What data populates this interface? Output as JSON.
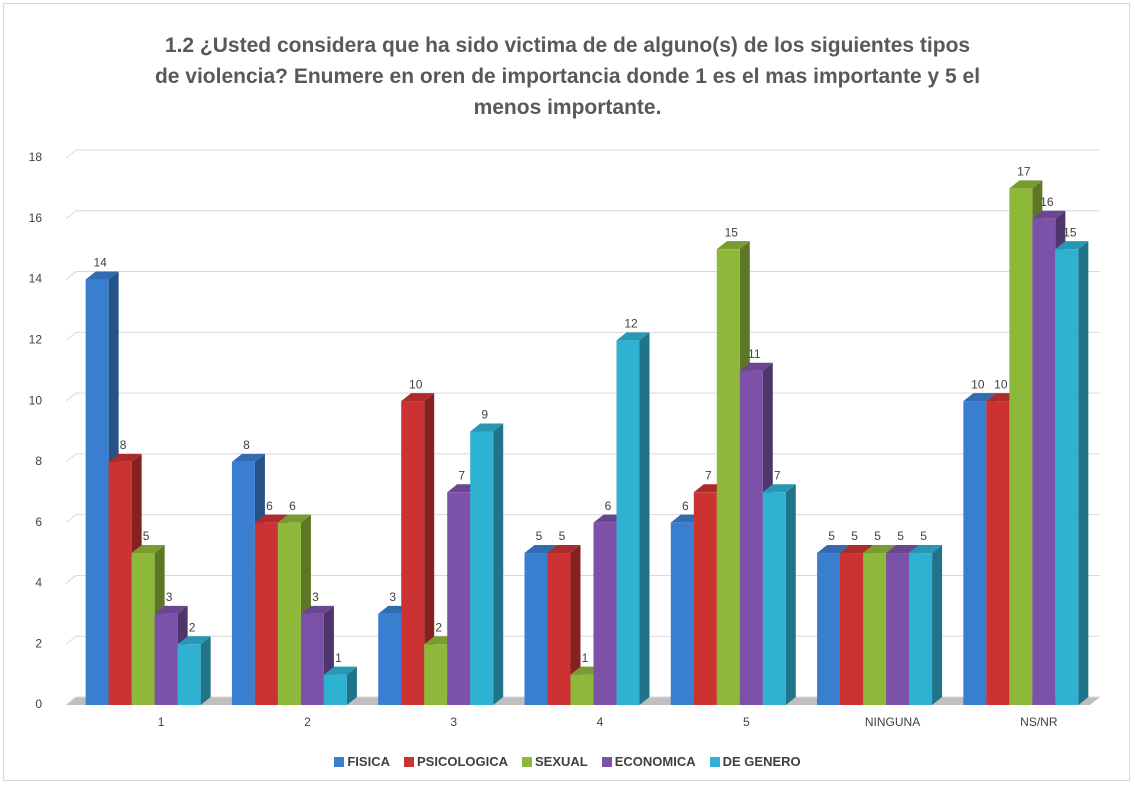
{
  "chart_data": {
    "type": "bar3d",
    "title": "1.2 ¿Usted considera que ha sido victima de de alguno(s) de los siguientes tipos de violencia? Enumere en oren de importancia donde 1 es el mas importante y 5 el menos importante.",
    "categories": [
      "1",
      "2",
      "3",
      "4",
      "5",
      "NINGUNA",
      "NS/NR"
    ],
    "series": [
      {
        "name": "FISICA",
        "color": "#3a7fcf",
        "values": [
          14,
          8,
          3,
          5,
          6,
          5,
          10
        ]
      },
      {
        "name": "PSICOLOGICA",
        "color": "#cc3232",
        "values": [
          8,
          6,
          10,
          5,
          7,
          5,
          10
        ]
      },
      {
        "name": "SEXUAL",
        "color": "#8db83a",
        "values": [
          5,
          6,
          2,
          1,
          15,
          5,
          17
        ]
      },
      {
        "name": "ECONOMICA",
        "color": "#7b52a8",
        "values": [
          3,
          3,
          7,
          6,
          11,
          5,
          16
        ]
      },
      {
        "name": "DE GENERO",
        "color": "#2fb2d2",
        "values": [
          2,
          1,
          9,
          12,
          7,
          5,
          15
        ]
      }
    ],
    "ylim": [
      0,
      18
    ],
    "yticks": [
      0,
      2,
      4,
      6,
      8,
      10,
      12,
      14,
      16,
      18
    ],
    "grid": true,
    "legend": "bottom"
  }
}
